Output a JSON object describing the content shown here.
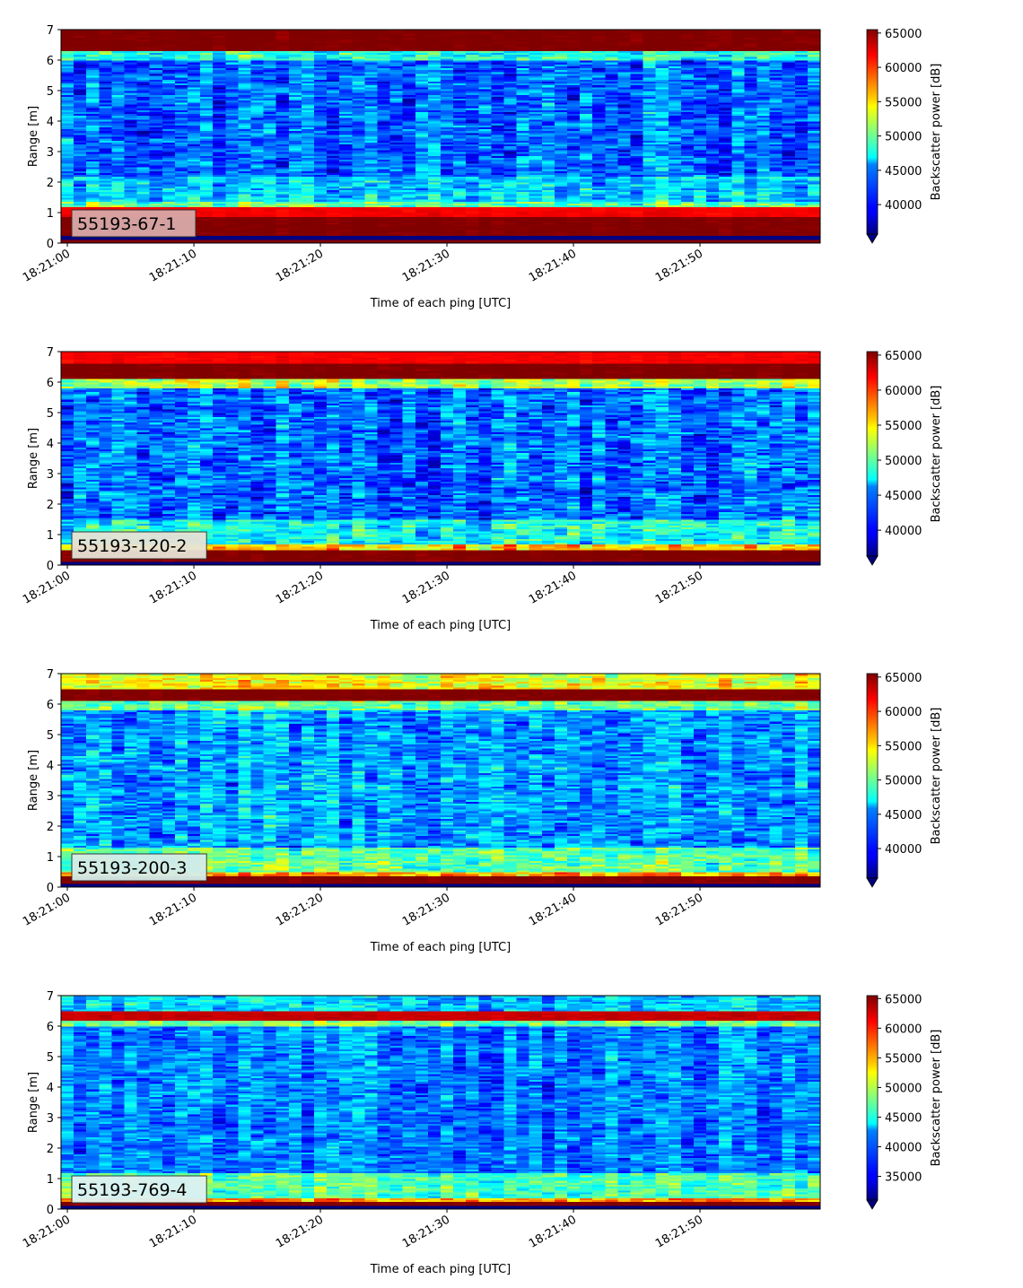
{
  "chart_data": [
    {
      "type": "heatmap",
      "label": "55193-67-1",
      "label_bg": "#d9a9a9",
      "xlabel": "Time of each ping [UTC]",
      "ylabel": "Range [m]",
      "xticks": [
        "18:21:00",
        "18:21:10",
        "18:21:20",
        "18:21:30",
        "18:21:40",
        "18:21:50"
      ],
      "yticks": [
        0,
        1,
        2,
        3,
        4,
        5,
        6,
        7
      ],
      "ylim": [
        0,
        7
      ],
      "x_range_seconds": [
        -0.5,
        59.5
      ],
      "colorbar": {
        "label": "Backscatter power [dB]",
        "ticks": [
          40000,
          45000,
          50000,
          55000,
          60000,
          65000
        ],
        "clim": [
          35700,
          65500
        ],
        "extend": "min"
      },
      "profile": [
        {
          "range": [
            0.0,
            0.15
          ],
          "value": 66000
        },
        {
          "range": [
            0.15,
            0.25
          ],
          "value": 30000
        },
        {
          "range": [
            0.25,
            0.85
          ],
          "value": 65500
        },
        {
          "range": [
            0.85,
            1.2
          ],
          "value": 62000
        },
        {
          "range": [
            1.2,
            1.4
          ],
          "value": 50000
        },
        {
          "range": [
            1.4,
            2.2
          ],
          "value": 45500
        },
        {
          "range": [
            2.2,
            6.0
          ],
          "value": 42500
        },
        {
          "range": [
            6.0,
            6.3
          ],
          "value": 48000
        },
        {
          "range": [
            6.3,
            7.0
          ],
          "value": 65500
        }
      ]
    },
    {
      "type": "heatmap",
      "label": "55193-120-2",
      "label_bg": "#e8e3d6",
      "xlabel": "Time of each ping [UTC]",
      "ylabel": "Range [m]",
      "xticks": [
        "18:21:00",
        "18:21:10",
        "18:21:20",
        "18:21:30",
        "18:21:40",
        "18:21:50"
      ],
      "yticks": [
        0,
        1,
        2,
        3,
        4,
        5,
        6,
        7
      ],
      "ylim": [
        0,
        7
      ],
      "x_range_seconds": [
        -0.5,
        59.5
      ],
      "colorbar": {
        "label": "Backscatter power [dB]",
        "ticks": [
          40000,
          45000,
          50000,
          55000,
          60000,
          65000
        ],
        "clim": [
          36300,
          65500
        ],
        "extend": "min"
      },
      "profile": [
        {
          "range": [
            0.0,
            0.1
          ],
          "value": 30000
        },
        {
          "range": [
            0.1,
            0.5
          ],
          "value": 65500
        },
        {
          "range": [
            0.5,
            0.7
          ],
          "value": 56000
        },
        {
          "range": [
            0.7,
            1.5
          ],
          "value": 47500
        },
        {
          "range": [
            1.5,
            5.8
          ],
          "value": 43000
        },
        {
          "range": [
            5.8,
            6.1
          ],
          "value": 52000
        },
        {
          "range": [
            6.1,
            6.6
          ],
          "value": 65500
        },
        {
          "range": [
            6.6,
            7.0
          ],
          "value": 62000
        }
      ]
    },
    {
      "type": "heatmap",
      "label": "55193-200-3",
      "label_bg": "#d5ece9",
      "xlabel": "Time of each ping [UTC]",
      "ylabel": "Range [m]",
      "xticks": [
        "18:21:00",
        "18:21:10",
        "18:21:20",
        "18:21:30",
        "18:21:40",
        "18:21:50"
      ],
      "yticks": [
        0,
        1,
        2,
        3,
        4,
        5,
        6,
        7
      ],
      "ylim": [
        0,
        7
      ],
      "x_range_seconds": [
        -0.5,
        59.5
      ],
      "colorbar": {
        "label": "Backscatter power [dB]",
        "ticks": [
          40000,
          45000,
          50000,
          55000,
          60000,
          65000
        ],
        "clim": [
          35700,
          65500
        ],
        "extend": "min"
      },
      "profile": [
        {
          "range": [
            0.0,
            0.1
          ],
          "value": 30000
        },
        {
          "range": [
            0.1,
            0.35
          ],
          "value": 65500
        },
        {
          "range": [
            0.35,
            0.5
          ],
          "value": 57000
        },
        {
          "range": [
            0.5,
            1.3
          ],
          "value": 49500
        },
        {
          "range": [
            1.3,
            5.8
          ],
          "value": 44000
        },
        {
          "range": [
            5.8,
            6.1
          ],
          "value": 50000
        },
        {
          "range": [
            6.1,
            6.5
          ],
          "value": 65500
        },
        {
          "range": [
            6.5,
            7.0
          ],
          "value": 54000
        }
      ]
    },
    {
      "type": "heatmap",
      "label": "55193-769-4",
      "label_bg": "#dff1f2",
      "xlabel": "Time of each ping [UTC]",
      "ylabel": "Range [m]",
      "xticks": [
        "18:21:00",
        "18:21:10",
        "18:21:20",
        "18:21:30",
        "18:21:40",
        "18:21:50"
      ],
      "yticks": [
        0,
        1,
        2,
        3,
        4,
        5,
        6,
        7
      ],
      "ylim": [
        0,
        7
      ],
      "x_range_seconds": [
        -0.5,
        59.5
      ],
      "colorbar": {
        "label": "Backscatter power [dB]",
        "ticks": [
          35000,
          40000,
          45000,
          50000,
          55000,
          60000,
          65000
        ],
        "clim": [
          31000,
          65500
        ],
        "extend": "min"
      },
      "profile": [
        {
          "range": [
            0.0,
            0.1
          ],
          "value": 26000
        },
        {
          "range": [
            0.1,
            0.25
          ],
          "value": 65500
        },
        {
          "range": [
            0.25,
            0.4
          ],
          "value": 56000
        },
        {
          "range": [
            0.4,
            1.2
          ],
          "value": 46500
        },
        {
          "range": [
            1.2,
            6.0
          ],
          "value": 39500
        },
        {
          "range": [
            6.0,
            6.2
          ],
          "value": 48000
        },
        {
          "range": [
            6.2,
            6.5
          ],
          "value": 63000
        },
        {
          "range": [
            6.5,
            7.0
          ],
          "value": 42000
        }
      ]
    }
  ]
}
